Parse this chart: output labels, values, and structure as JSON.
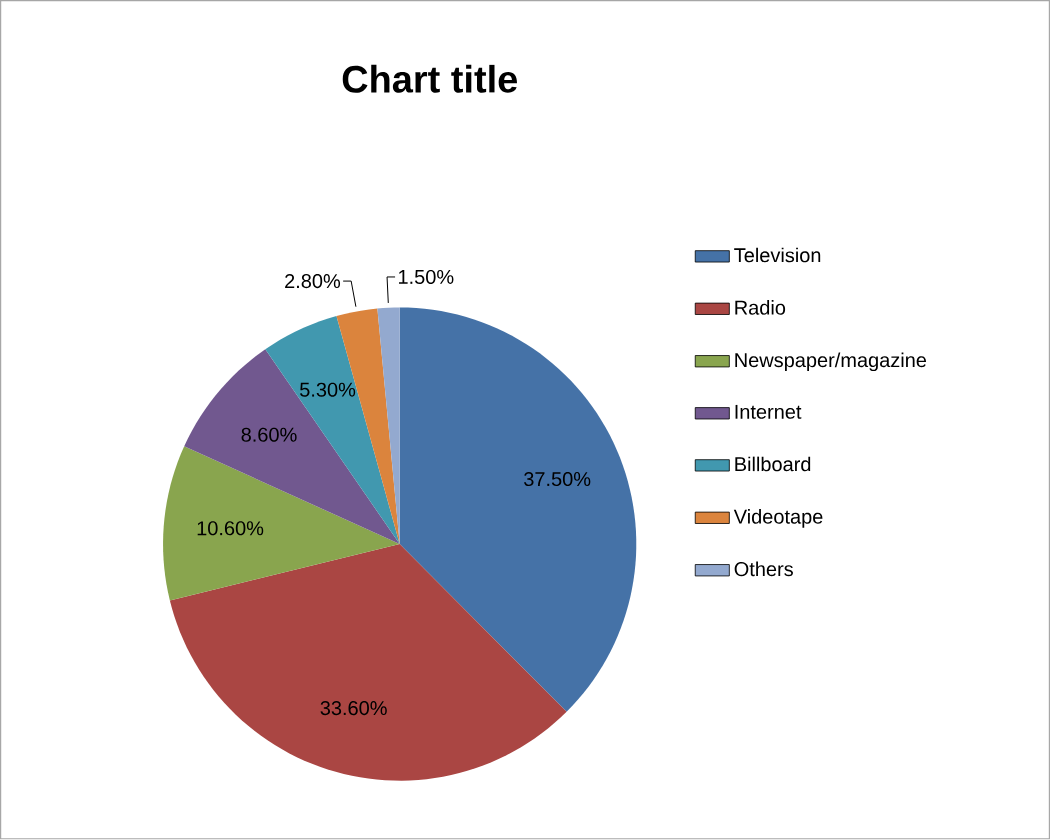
{
  "chart_data": {
    "type": "pie",
    "title": "Chart title",
    "categories": [
      "Television",
      "Radio",
      "Newspaper/magazine",
      "Internet",
      "Billboard",
      "Videotape",
      "Others"
    ],
    "values": [
      37.5,
      33.6,
      10.6,
      8.6,
      5.3,
      2.8,
      1.5
    ],
    "value_labels": [
      "37.50%",
      "33.60%",
      "10.60%",
      "8.60%",
      "5.30%",
      "2.80%",
      "1.50%"
    ],
    "colors": [
      "#4572a7",
      "#aa4643",
      "#89a54e",
      "#71588f",
      "#4198af",
      "#db843d",
      "#93a9cf"
    ],
    "legend": "right"
  }
}
